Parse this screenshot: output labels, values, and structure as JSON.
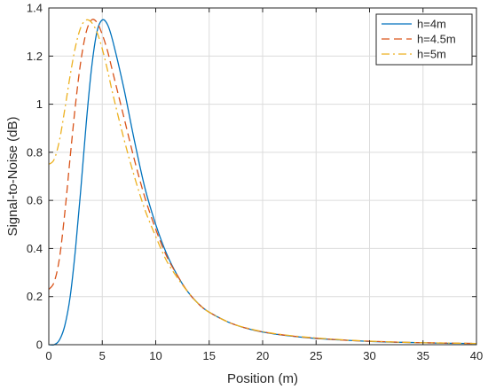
{
  "chart_data": {
    "type": "line",
    "title": "",
    "xlabel": "Position (m)",
    "ylabel": "Signal-to-Noise (dB)",
    "xlim": [
      0,
      40
    ],
    "ylim": [
      0,
      1.4
    ],
    "xticks": [
      "0",
      "5",
      "10",
      "15",
      "20",
      "25",
      "30",
      "35",
      "40"
    ],
    "yticks": [
      "0",
      "0.2",
      "0.4",
      "0.6",
      "0.8",
      "1",
      "1.2",
      "1.4"
    ],
    "grid": true,
    "legend_position": "top-right",
    "series": [
      {
        "name": "h=4m",
        "color": "#0072BD",
        "dash": "solid",
        "x": [
          0,
          0.5,
          1,
          1.5,
          2,
          2.5,
          3,
          3.5,
          4,
          4.5,
          5,
          5.5,
          6,
          7,
          8,
          9,
          10,
          11,
          12,
          13,
          14,
          15,
          17,
          19,
          21,
          23,
          25,
          28,
          31,
          34,
          37,
          40
        ],
        "y": [
          0,
          0.0,
          0.02,
          0.08,
          0.2,
          0.4,
          0.65,
          0.92,
          1.15,
          1.3,
          1.35,
          1.33,
          1.26,
          1.07,
          0.85,
          0.65,
          0.5,
          0.38,
          0.29,
          0.22,
          0.17,
          0.135,
          0.09,
          0.062,
          0.045,
          0.034,
          0.026,
          0.018,
          0.012,
          0.009,
          0.006,
          0.005
        ]
      },
      {
        "name": "h=4.5m",
        "color": "#D95319",
        "dash": "dashed",
        "x": [
          0,
          0.5,
          1,
          1.5,
          2,
          2.5,
          3,
          3.5,
          4,
          4.5,
          5,
          5.5,
          6,
          7,
          8,
          9,
          10,
          11,
          12,
          13,
          14,
          15,
          17,
          19,
          21,
          23,
          25,
          28,
          31,
          34,
          37,
          40
        ],
        "y": [
          0.23,
          0.26,
          0.36,
          0.55,
          0.78,
          1.0,
          1.18,
          1.3,
          1.35,
          1.34,
          1.29,
          1.22,
          1.13,
          0.95,
          0.77,
          0.61,
          0.48,
          0.37,
          0.29,
          0.22,
          0.17,
          0.135,
          0.09,
          0.063,
          0.046,
          0.035,
          0.027,
          0.018,
          0.013,
          0.009,
          0.007,
          0.005
        ]
      },
      {
        "name": "h=5m",
        "color": "#EDB120",
        "dash": "dashdot",
        "x": [
          0,
          0.5,
          1,
          1.5,
          2,
          2.5,
          3,
          3.5,
          4,
          4.5,
          5,
          5.5,
          6,
          7,
          8,
          9,
          10,
          11,
          12,
          13,
          14,
          15,
          17,
          19,
          21,
          23,
          25,
          28,
          31,
          34,
          37,
          40
        ],
        "y": [
          0.75,
          0.77,
          0.85,
          0.98,
          1.12,
          1.24,
          1.32,
          1.35,
          1.34,
          1.3,
          1.23,
          1.14,
          1.04,
          0.86,
          0.7,
          0.56,
          0.45,
          0.35,
          0.28,
          0.22,
          0.17,
          0.135,
          0.09,
          0.064,
          0.047,
          0.036,
          0.028,
          0.019,
          0.013,
          0.009,
          0.007,
          0.005
        ]
      }
    ]
  }
}
